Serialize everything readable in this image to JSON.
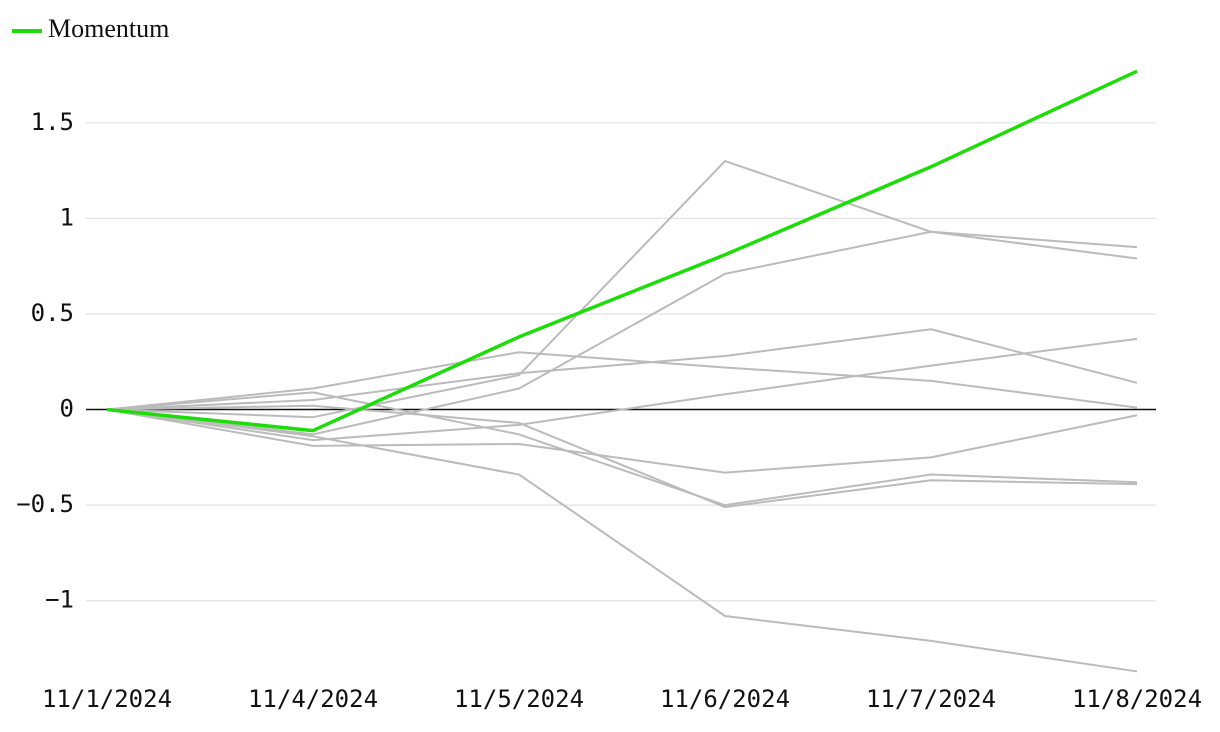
{
  "chart_data": {
    "type": "line",
    "categories": [
      "11/1/2024",
      "11/4/2024",
      "11/5/2024",
      "11/6/2024",
      "11/7/2024",
      "11/8/2024"
    ],
    "series": [
      {
        "color": "#bbbbbb",
        "values": [
          0,
          -0.04,
          0.18,
          1.3,
          0.93,
          0.79
        ]
      },
      {
        "color": "#bbbbbb",
        "values": [
          0,
          -0.13,
          0.11,
          0.71,
          0.93,
          0.85
        ]
      },
      {
        "color": "#bbbbbb",
        "values": [
          0,
          0.11,
          0.3,
          0.22,
          0.15,
          0.01
        ]
      },
      {
        "color": "#bbbbbb",
        "values": [
          0,
          0.05,
          0.19,
          0.28,
          0.42,
          0.14
        ]
      },
      {
        "color": "#bbbbbb",
        "values": [
          0,
          -0.16,
          -0.08,
          0.08,
          0.23,
          0.37
        ]
      },
      {
        "color": "#bbbbbb",
        "values": [
          0,
          0.09,
          -0.13,
          -0.5,
          -0.34,
          -0.38
        ]
      },
      {
        "color": "#bbbbbb",
        "values": [
          0,
          -0.19,
          -0.18,
          -0.33,
          -0.25,
          -0.03
        ]
      },
      {
        "color": "#bbbbbb",
        "values": [
          0,
          0.02,
          -0.07,
          -0.51,
          -0.37,
          -0.39
        ]
      },
      {
        "color": "#bbbbbb",
        "values": [
          0,
          -0.14,
          -0.34,
          -1.08,
          -1.21,
          -1.37
        ]
      },
      {
        "name": "Momentum",
        "color": "#1edc0a",
        "values": [
          0,
          -0.11,
          0.38,
          0.81,
          1.27,
          1.77
        ]
      }
    ],
    "ylim": [
      -1.42,
      1.86
    ],
    "yticks": [
      {
        "value": -1,
        "label": "−1"
      },
      {
        "value": -0.5,
        "label": "−0.5"
      },
      0,
      0.5,
      1,
      1.5
    ],
    "grid": true
  }
}
